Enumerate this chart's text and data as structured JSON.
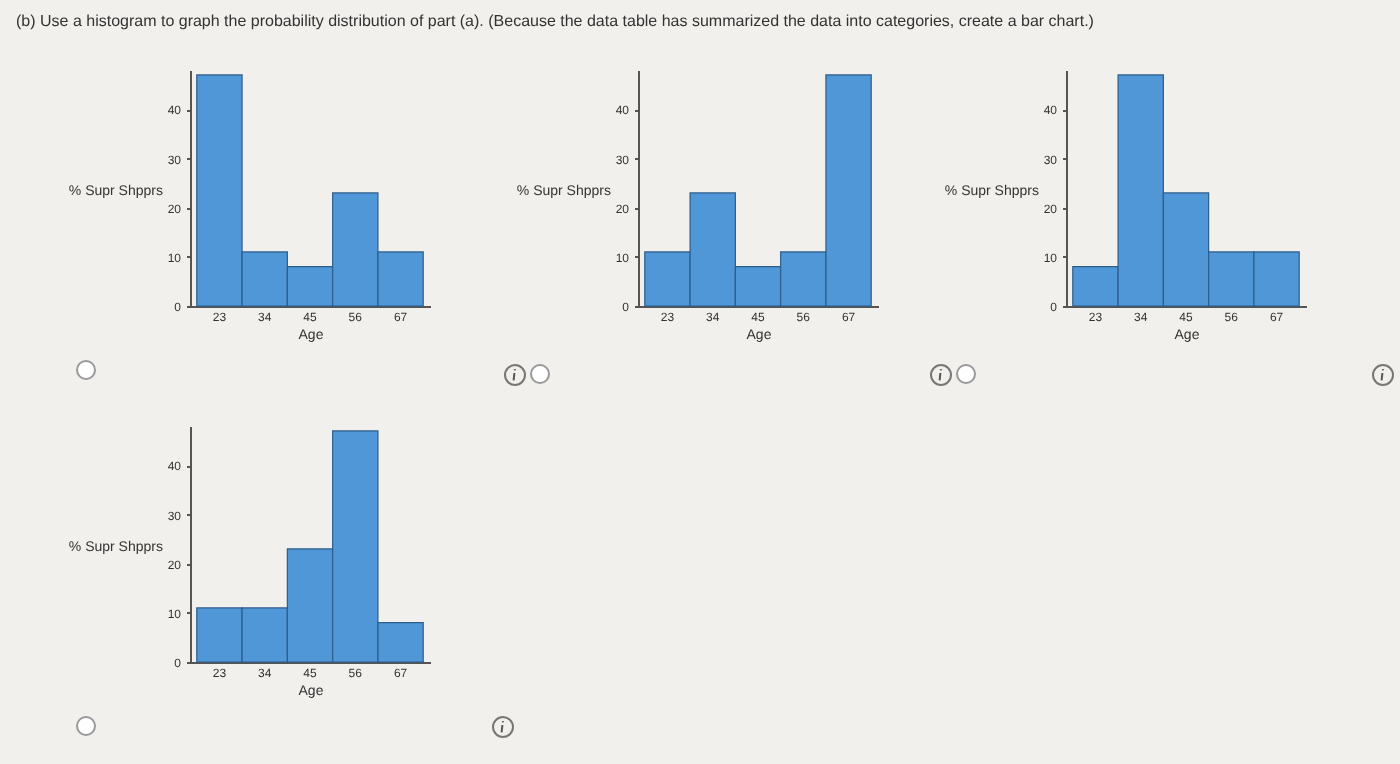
{
  "chart_data": [
    {
      "type": "bar",
      "title": "(b) Use a histogram to graph the probability distribution of part (a). (Because the data table has summarized the data into categories, create a bar chart.)",
      "categories": [
        "23",
        "34",
        "45",
        "56",
        "67"
      ],
      "values": [
        47,
        11,
        8,
        23,
        11
      ],
      "color": "#4f97d6",
      "xlabel": "Age",
      "ylabel": "% Supr Shpprs",
      "ylim": [
        0,
        48
      ],
      "yticks": [
        0,
        10,
        20,
        30,
        40
      ],
      "grid": false
    },
    {
      "type": "bar",
      "categories": [
        "23",
        "34",
        "45",
        "56",
        "67"
      ],
      "values": [
        11,
        23,
        8,
        11,
        47
      ],
      "color": "#4f97d6",
      "xlabel": "Age",
      "ylabel": "% Supr Shpprs",
      "ylim": [
        0,
        48
      ],
      "yticks": [
        0,
        10,
        20,
        30,
        40
      ],
      "grid": false
    },
    {
      "type": "bar",
      "categories": [
        "23",
        "34",
        "45",
        "56",
        "67"
      ],
      "values": [
        8,
        47,
        23,
        11,
        11
      ],
      "color": "#4f97d6",
      "xlabel": "Age",
      "ylabel": "% Supr Shpprs",
      "ylim": [
        0,
        48
      ],
      "yticks": [
        0,
        10,
        20,
        30,
        40
      ],
      "grid": false
    },
    {
      "type": "bar",
      "categories": [
        "23",
        "34",
        "45",
        "56",
        "67"
      ],
      "values": [
        11,
        11,
        23,
        47,
        8
      ],
      "color": "#4f97d6",
      "xlabel": "Age",
      "ylabel": "% Supr Shpprs",
      "ylim": [
        0,
        48
      ],
      "yticks": [
        0,
        10,
        20,
        30,
        40
      ],
      "grid": false
    }
  ]
}
